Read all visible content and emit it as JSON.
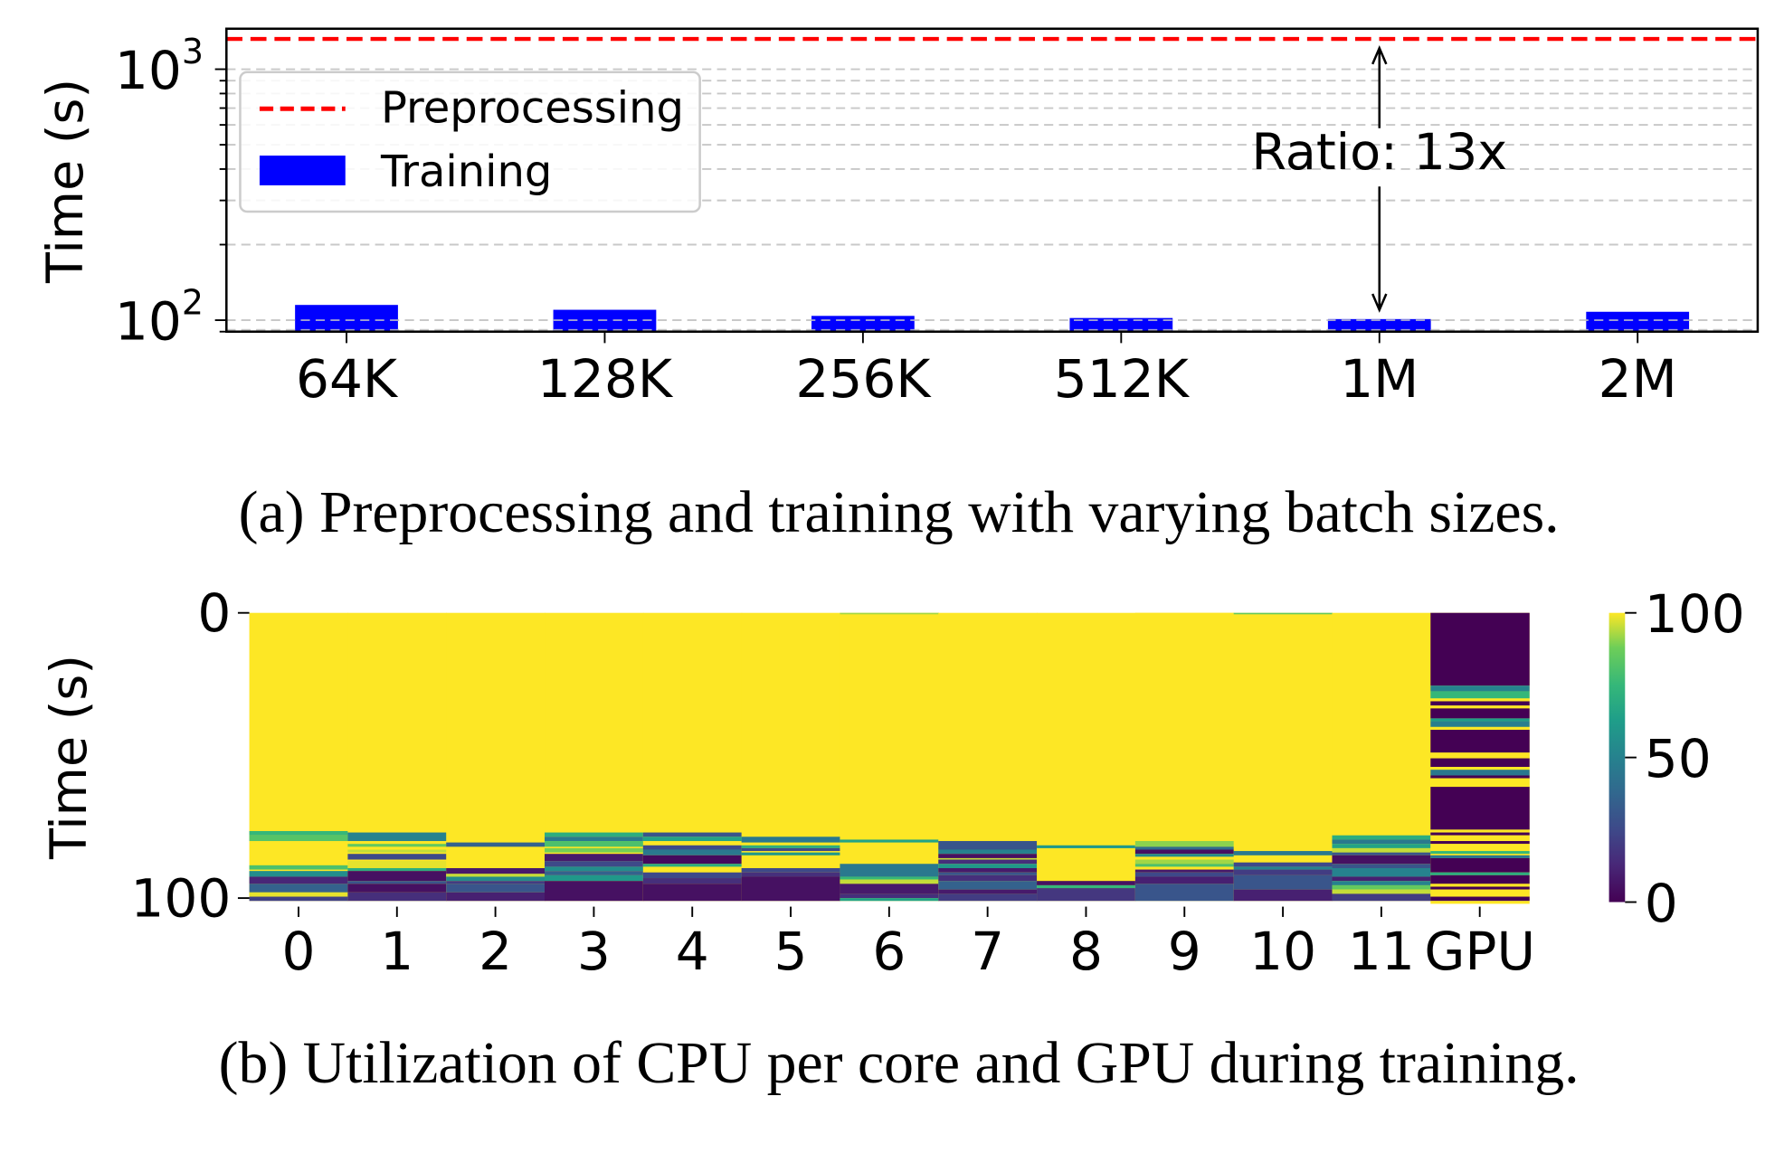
{
  "chart_data": [
    {
      "type": "bar",
      "title": "",
      "xlabel": "",
      "ylabel": "Time (s)",
      "yscale": "log",
      "ylim": [
        90,
        1450
      ],
      "yticks": [
        {
          "value": 100,
          "label": "10",
          "exp": "2"
        },
        {
          "value": 1000,
          "label": "10",
          "exp": "3"
        }
      ],
      "grid": "dashed-horizontal-minor-and-major",
      "categories": [
        "64K",
        "128K",
        "256K",
        "512K",
        "1M",
        "2M"
      ],
      "series": [
        {
          "name": "Training",
          "type": "bar",
          "color": "#0000ff",
          "values": [
            115,
            110,
            104,
            102,
            101,
            108
          ]
        },
        {
          "name": "Preprocessing",
          "type": "hline",
          "color": "#ff0000",
          "style": "dashed",
          "value": 1320
        }
      ],
      "legend": {
        "placement": "top-left",
        "entries": [
          "Preprocessing",
          "Training"
        ]
      },
      "annotation": {
        "text": "Ratio: 13x",
        "category": "1M",
        "from": 101,
        "to": 1320,
        "arrow": "double"
      },
      "caption": "(a) Preprocessing and training with varying batch sizes."
    },
    {
      "type": "heatmap",
      "title": "",
      "ylabel": "Time (s)",
      "xlabel": "",
      "colormap": "viridis",
      "vmin": 0,
      "vmax": 100,
      "ylim": [
        0,
        101
      ],
      "yticks": [
        0,
        100
      ],
      "columns": [
        "0",
        "1",
        "2",
        "3",
        "4",
        "5",
        "6",
        "7",
        "8",
        "9",
        "10",
        "11",
        "GPU"
      ],
      "colorbar_ticks": [
        0,
        50,
        100
      ],
      "default_value": 100,
      "bands_note": "each column lists [start_s, end_s, utilization%] segments; unlisted time = 100",
      "bands": [
        [
          [
            76.5,
            78,
            75
          ],
          [
            78,
            80,
            82
          ],
          [
            88.5,
            90,
            80
          ],
          [
            90.5,
            92.5,
            55
          ],
          [
            92.5,
            95,
            12
          ],
          [
            95,
            98,
            35
          ],
          [
            98,
            99.5,
            98
          ],
          [
            99.5,
            101,
            22
          ]
        ],
        [
          [
            77,
            80,
            50
          ],
          [
            81,
            82,
            85
          ],
          [
            83,
            84,
            95
          ],
          [
            84.5,
            86.5,
            25
          ],
          [
            87,
            89.5,
            98
          ],
          [
            89.5,
            90.5,
            70
          ],
          [
            90.5,
            94,
            5
          ],
          [
            94,
            95,
            30
          ],
          [
            95,
            98,
            5
          ],
          [
            98,
            101,
            15
          ]
        ],
        [
          [
            80.5,
            82,
            35
          ],
          [
            89.5,
            91.5,
            8
          ],
          [
            91.5,
            92.5,
            95
          ],
          [
            92.5,
            94,
            55
          ],
          [
            94,
            95,
            20
          ],
          [
            95,
            98,
            30
          ],
          [
            98,
            101,
            10
          ]
        ],
        [
          [
            77,
            78.5,
            70
          ],
          [
            78.5,
            80,
            45
          ],
          [
            80,
            82,
            80
          ],
          [
            82.5,
            84,
            88
          ],
          [
            84.5,
            87,
            8
          ],
          [
            87,
            89,
            25
          ],
          [
            89,
            90.5,
            55
          ],
          [
            90.5,
            92,
            35
          ],
          [
            92,
            94,
            60
          ],
          [
            94,
            101,
            5
          ]
        ],
        [
          [
            77,
            78.5,
            30
          ],
          [
            78.5,
            80,
            65
          ],
          [
            81.5,
            83,
            25
          ],
          [
            83,
            85,
            45
          ],
          [
            85,
            88,
            3
          ],
          [
            88,
            89,
            70
          ],
          [
            91,
            93,
            25
          ],
          [
            93,
            95,
            15
          ],
          [
            95,
            101,
            5
          ]
        ],
        [
          [
            78.5,
            80.5,
            45
          ],
          [
            81.5,
            82.5,
            70
          ],
          [
            82.5,
            83.5,
            25
          ],
          [
            84,
            85,
            60
          ],
          [
            89.5,
            91,
            25
          ],
          [
            91,
            92.5,
            15
          ],
          [
            92.5,
            101,
            5
          ]
        ],
        [
          [
            0,
            0.5,
            92
          ],
          [
            79.5,
            80.5,
            65
          ],
          [
            88,
            92.5,
            45
          ],
          [
            92.5,
            93.5,
            75
          ],
          [
            93.5,
            95,
            95
          ],
          [
            95,
            98.5,
            8
          ],
          [
            98.5,
            100,
            15
          ],
          [
            100,
            101,
            65
          ]
        ],
        [
          [
            80,
            83,
            30
          ],
          [
            83,
            84.5,
            50
          ],
          [
            84.5,
            86,
            5
          ],
          [
            86,
            86.5,
            95
          ],
          [
            86.5,
            88,
            15
          ],
          [
            88,
            89.5,
            60
          ],
          [
            89.5,
            91,
            8
          ],
          [
            91,
            92,
            30
          ],
          [
            92,
            94,
            15
          ],
          [
            94,
            97,
            35
          ],
          [
            97,
            98.5,
            8
          ],
          [
            98.5,
            101,
            20
          ]
        ],
        [
          [
            81.5,
            82.5,
            60
          ],
          [
            94,
            95.5,
            5
          ],
          [
            95.5,
            96.5,
            75
          ],
          [
            96.5,
            101,
            18
          ]
        ],
        [
          [
            0,
            0.3,
            100
          ],
          [
            80,
            82,
            90
          ],
          [
            82,
            83,
            40
          ],
          [
            83,
            84.5,
            5
          ],
          [
            84.5,
            85.5,
            55
          ],
          [
            86.5,
            88,
            92
          ],
          [
            88,
            89,
            80
          ],
          [
            90,
            91,
            8
          ],
          [
            91,
            92.5,
            25
          ],
          [
            92.5,
            95,
            10
          ],
          [
            95,
            101,
            30
          ]
        ],
        [
          [
            0,
            0.5,
            85
          ],
          [
            83.5,
            85,
            45
          ],
          [
            87.5,
            89,
            25
          ],
          [
            89,
            90,
            50
          ],
          [
            90,
            92,
            20
          ],
          [
            92,
            97,
            30
          ],
          [
            97,
            101,
            10
          ]
        ],
        [
          [
            78,
            79.5,
            70
          ],
          [
            79.5,
            81,
            45
          ],
          [
            81,
            82.5,
            65
          ],
          [
            82.5,
            84,
            95
          ],
          [
            84,
            85,
            30
          ],
          [
            85,
            88,
            5
          ],
          [
            88,
            89.5,
            30
          ],
          [
            89.5,
            92.5,
            50
          ],
          [
            92.5,
            94,
            10
          ],
          [
            94,
            95.5,
            50
          ],
          [
            95.5,
            97,
            85
          ],
          [
            97,
            98.5,
            95
          ],
          [
            98.5,
            101,
            20
          ]
        ],
        [
          [
            0,
            25.5,
            0
          ],
          [
            25.5,
            27.5,
            50
          ],
          [
            27.5,
            30,
            75
          ],
          [
            30,
            31,
            100
          ],
          [
            31,
            32.5,
            0
          ],
          [
            32.5,
            33.5,
            100
          ],
          [
            33.5,
            37,
            0
          ],
          [
            37,
            38,
            62
          ],
          [
            38,
            40,
            48
          ],
          [
            40,
            41,
            100
          ],
          [
            41,
            49,
            0
          ],
          [
            49,
            51,
            100
          ],
          [
            51,
            54,
            0
          ],
          [
            54,
            55,
            100
          ],
          [
            55,
            57,
            45
          ],
          [
            57,
            58,
            0
          ],
          [
            58,
            61,
            100
          ],
          [
            61,
            76,
            0
          ],
          [
            76,
            77,
            100
          ],
          [
            77,
            78,
            0
          ],
          [
            78,
            80,
            100
          ],
          [
            80,
            81,
            0
          ],
          [
            81,
            83.5,
            100
          ],
          [
            83.5,
            84.5,
            75
          ],
          [
            84.5,
            85,
            100
          ],
          [
            85,
            86,
            45
          ],
          [
            86,
            91,
            0
          ],
          [
            91,
            92,
            70
          ],
          [
            92,
            95,
            0
          ],
          [
            95,
            96,
            100
          ],
          [
            96,
            97,
            0
          ],
          [
            97,
            99.5,
            100
          ],
          [
            99.5,
            101,
            0
          ],
          [
            101,
            102,
            100
          ]
        ]
      ],
      "caption": "(b) Utilization of CPU per core and GPU during training."
    }
  ]
}
